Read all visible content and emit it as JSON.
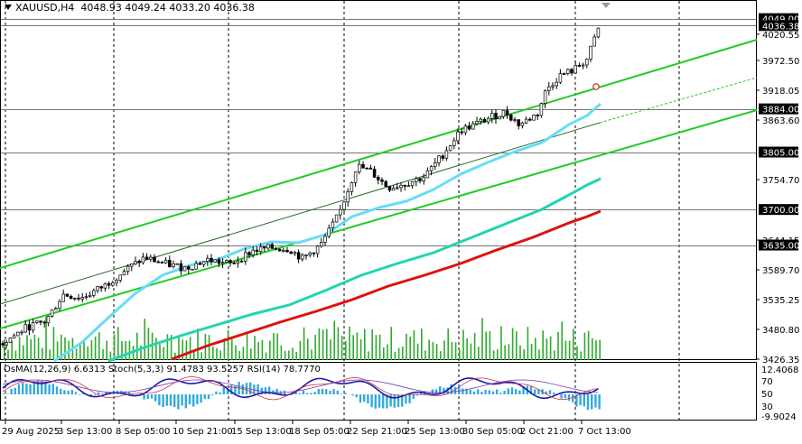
{
  "header": {
    "symbol": "XAUUSD,H4",
    "ohlc": "4048.93 4049.24 4033.20 4036.38"
  },
  "price_axis": {
    "ticks": [
      "4020.55",
      "3972.50",
      "3918.05",
      "3863.60",
      "3754.70",
      "3644.15",
      "3589.70",
      "3535.25",
      "3480.80",
      "3426.35"
    ],
    "level_tags": [
      {
        "price": 4049.0,
        "label": "4049.00",
        "type": "dark"
      },
      {
        "price": 4036.38,
        "label": "4036.38",
        "type": "dark"
      },
      {
        "price": 3884.0,
        "label": "3884.00",
        "type": "dark"
      },
      {
        "price": 3805.0,
        "label": "3805.00",
        "type": "dark"
      },
      {
        "price": 3700.0,
        "label": "3700.00",
        "type": "dark"
      },
      {
        "price": 3635.0,
        "label": "3635.00",
        "type": "dark"
      }
    ]
  },
  "time_axis": {
    "labels": [
      "29 Aug 2025",
      "3 Sep 13:00",
      "8 Sep 05:00",
      "10 Sep 21:00",
      "15 Sep 13:00",
      "18 Sep 05:00",
      "22 Sep 21:00",
      "25 Sep 13:00",
      "30 Sep 05:00",
      "2 Oct 21:00",
      "7 Oct 13:00"
    ]
  },
  "indicator": {
    "label": "OsMA(12,26,9) 6.6313  Stoch(5,3,3) 91.4783 93.5257  RSI(14) 78.7770",
    "axis_labels": [
      "12.4068",
      "70",
      "50",
      "30",
      "-9.9024"
    ]
  },
  "colors": {
    "channel": "#22cc22",
    "ema_fast": "#66ddf5",
    "ema_mid": "#22d4b0",
    "ema_slow": "#dd1111",
    "candle": "#000000",
    "volume": "#2faa2f",
    "osma": "#33aadd",
    "stoch_main": "#1a1aa8",
    "stoch_signal": "#cc3344",
    "rsi": "#7a3fb0",
    "tag_bg": "#000000",
    "tag_text": "#ffffff"
  },
  "icons": {
    "symbol_dropdown": "triangle-down-icon",
    "alert_marker": "alert-circle-icon",
    "shift_marker": "chart-shift-triangle-icon"
  }
}
